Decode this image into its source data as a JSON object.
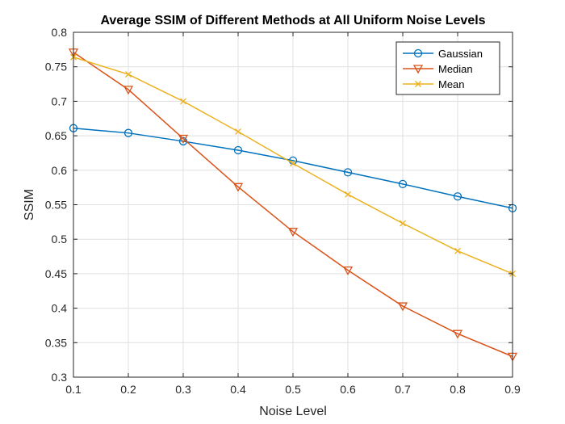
{
  "chart_data": {
    "type": "line",
    "title": "Average SSIM of Different Methods at All Uniform Noise Levels",
    "xlabel": "Noise Level",
    "ylabel": "SSIM",
    "x": [
      0.1,
      0.2,
      0.3,
      0.4,
      0.5,
      0.6,
      0.7,
      0.8,
      0.9
    ],
    "xlim": [
      0.1,
      0.9
    ],
    "ylim": [
      0.3,
      0.8
    ],
    "x_ticks": [
      "0.1",
      "0.2",
      "0.3",
      "0.4",
      "0.5",
      "0.6",
      "0.7",
      "0.8",
      "0.9"
    ],
    "y_ticks": [
      "0.3",
      "0.35",
      "0.4",
      "0.45",
      "0.5",
      "0.55",
      "0.6",
      "0.65",
      "0.7",
      "0.75",
      "0.8"
    ],
    "grid": true,
    "legend_position": "top-right",
    "series": [
      {
        "name": "Gaussian",
        "color": "#0072BD",
        "marker": "circle",
        "values": [
          0.661,
          0.654,
          0.642,
          0.629,
          0.614,
          0.597,
          0.58,
          0.562,
          0.545
        ]
      },
      {
        "name": "Median",
        "color": "#D95319",
        "marker": "triangle-down",
        "values": [
          0.771,
          0.717,
          0.646,
          0.576,
          0.511,
          0.455,
          0.403,
          0.363,
          0.33
        ]
      },
      {
        "name": "Mean",
        "color": "#EDB120",
        "marker": "x",
        "values": [
          0.764,
          0.739,
          0.7,
          0.656,
          0.61,
          0.565,
          0.523,
          0.483,
          0.45
        ]
      }
    ]
  }
}
